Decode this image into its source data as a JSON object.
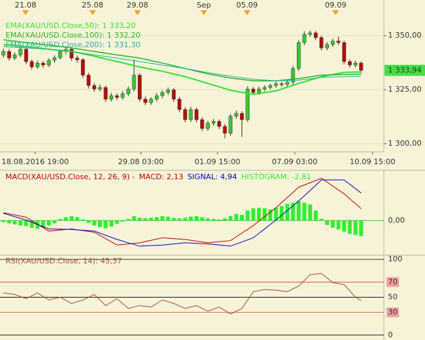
{
  "chart_data": [
    {
      "type": "candlestick",
      "xlim": [
        -0.6,
        67
      ],
      "ylim": [
        1296.2,
        1366.5
      ],
      "yticks": [
        {
          "value": 1300,
          "label": "1 300,00"
        },
        {
          "value": 1325,
          "label": "1 325,00"
        },
        {
          "value": 1350,
          "label": "1 350,00"
        }
      ],
      "grid": true,
      "xticks": [
        {
          "value": 5.6,
          "label": "18.08.2016 19:00"
        },
        {
          "value": 24.2,
          "label": "29.08 03:00"
        },
        {
          "value": 37.7,
          "label": "01.09 15:00"
        },
        {
          "value": 51.3,
          "label": "07.09 03:00"
        },
        {
          "value": 65.0,
          "label": "10.09 15:00"
        }
      ],
      "top_ticks": [
        {
          "value": 3.9,
          "label": "21.08"
        },
        {
          "value": 15.7,
          "label": "25.08"
        },
        {
          "value": 23.6,
          "label": "29.08"
        },
        {
          "value": 35.3,
          "label": "Sep"
        },
        {
          "value": 42.9,
          "label": "05.09"
        },
        {
          "value": 58.5,
          "label": "09.09"
        }
      ],
      "up_color": "#33cc33",
      "down_color": "#b01010",
      "open": [
        1341.0,
        1342.7,
        1339.6,
        1341.1,
        1343.7,
        1338.0,
        1335.5,
        1337.3,
        1336.4,
        1338.6,
        1339.8,
        1342.7,
        1343.7,
        1339.6,
        1338.9,
        1331.7,
        1326.9,
        1325.3,
        1326.0,
        1320.6,
        1322.2,
        1321.4,
        1323.1,
        1325.3,
        1331.7,
        1320.6,
        1319.0,
        1320.6,
        1322.2,
        1323.7,
        1324.9,
        1320.6,
        1315.8,
        1311.1,
        1315.8,
        1311.1,
        1307.0,
        1309.5,
        1310.3,
        1308.0,
        1304.8,
        1312.7,
        1314.0,
        1311.1,
        1325.3,
        1323.7,
        1325.3,
        1326.0,
        1326.9,
        1327.7,
        1327.5,
        1328.5,
        1334.8,
        1346.8,
        1350.6,
        1351.3,
        1349.1,
        1344.3,
        1345.9,
        1347.5,
        1346.8,
        1338.0,
        1336.4,
        1337.3
      ],
      "high": [
        1344.0,
        1343.9,
        1342.3,
        1345.0,
        1344.6,
        1339.0,
        1338.5,
        1338.2,
        1339.5,
        1340.9,
        1343.6,
        1345.2,
        1344.5,
        1340.8,
        1339.6,
        1332.8,
        1328.0,
        1327.4,
        1326.8,
        1323.5,
        1323.3,
        1324.4,
        1326.5,
        1339.0,
        1332.5,
        1321.9,
        1321.5,
        1323.4,
        1324.8,
        1326.0,
        1325.8,
        1321.7,
        1316.9,
        1317.0,
        1316.6,
        1312.3,
        1310.6,
        1311.4,
        1311.2,
        1309.1,
        1313.8,
        1315.3,
        1315.0,
        1326.6,
        1326.2,
        1326.4,
        1327.1,
        1327.9,
        1328.6,
        1328.7,
        1329.6,
        1336.0,
        1348.0,
        1352.0,
        1352.4,
        1352.1,
        1350.0,
        1347.0,
        1348.6,
        1349.5,
        1347.6,
        1339.0,
        1338.4,
        1338.1
      ],
      "low": [
        1339.8,
        1338.4,
        1338.7,
        1340.0,
        1336.8,
        1334.3,
        1334.6,
        1335.2,
        1335.5,
        1337.4,
        1338.9,
        1341.5,
        1338.3,
        1337.5,
        1330.4,
        1325.5,
        1324.0,
        1324.1,
        1319.3,
        1319.5,
        1320.2,
        1320.3,
        1322.0,
        1324.2,
        1319.4,
        1317.8,
        1318.0,
        1319.5,
        1321.0,
        1322.6,
        1319.3,
        1314.5,
        1309.8,
        1310.0,
        1309.9,
        1305.8,
        1306.0,
        1308.4,
        1306.8,
        1302.5,
        1303.6,
        1311.5,
        1303.2,
        1310.0,
        1322.5,
        1322.6,
        1324.2,
        1325.0,
        1325.8,
        1326.3,
        1326.4,
        1327.3,
        1333.6,
        1345.5,
        1349.4,
        1347.9,
        1343.1,
        1343.2,
        1344.8,
        1345.6,
        1336.8,
        1335.2,
        1335.3,
        1332.8
      ],
      "close": [
        1342.7,
        1339.6,
        1341.1,
        1343.7,
        1338.0,
        1335.5,
        1337.3,
        1336.4,
        1338.6,
        1339.8,
        1342.7,
        1343.7,
        1339.6,
        1338.9,
        1331.7,
        1326.9,
        1325.3,
        1326.0,
        1320.6,
        1322.2,
        1321.4,
        1323.1,
        1325.3,
        1331.7,
        1320.6,
        1319.0,
        1320.6,
        1322.2,
        1323.7,
        1324.9,
        1320.6,
        1315.8,
        1311.1,
        1315.8,
        1311.1,
        1307.0,
        1309.5,
        1310.3,
        1308.0,
        1304.8,
        1312.7,
        1314.0,
        1311.1,
        1325.3,
        1323.7,
        1325.3,
        1326.0,
        1326.9,
        1327.7,
        1327.5,
        1328.5,
        1334.8,
        1346.8,
        1350.6,
        1351.3,
        1349.1,
        1344.3,
        1345.9,
        1347.5,
        1346.8,
        1338.0,
        1336.4,
        1337.3,
        1333.94
      ],
      "last_price": {
        "value": 1333.94,
        "label": "1 333,94"
      },
      "last_price_color": "#44dd44",
      "series": [
        {
          "name": "EMA(XAU/USD.Close,50): 1 333,20",
          "color": "#33e033",
          "width": 2,
          "x": [
            0,
            4,
            8,
            12,
            16,
            20,
            24,
            28,
            32,
            36,
            40,
            44,
            48,
            52,
            56,
            60,
            63
          ],
          "values": [
            1345.9,
            1344.9,
            1343.7,
            1342.7,
            1340.5,
            1338.0,
            1335.5,
            1333.5,
            1331.0,
            1327.9,
            1324.7,
            1322.8,
            1324.4,
            1327.9,
            1331.0,
            1333.0,
            1333.2
          ]
        },
        {
          "name": "EMA(XAU/USD.Close,100): 1 332,20",
          "color": "#22b822",
          "width": 1.5,
          "x": [
            0,
            4,
            8,
            12,
            16,
            20,
            24,
            28,
            32,
            36,
            40,
            44,
            48,
            52,
            56,
            60,
            63
          ],
          "values": [
            1348.1,
            1346.8,
            1345.6,
            1344.3,
            1342.7,
            1341.1,
            1339.6,
            1337.3,
            1334.8,
            1332.3,
            1330.4,
            1329.1,
            1329.1,
            1330.1,
            1331.7,
            1332.0,
            1332.2
          ]
        },
        {
          "name": "EMA(XAU/USD.Close,200): 1 331,30",
          "color": "#20b0a0",
          "width": 1,
          "x": [
            0,
            4,
            8,
            12,
            16,
            20,
            24,
            28,
            32,
            36,
            40,
            44,
            48,
            52,
            56,
            60,
            63
          ],
          "values": [
            1344.9,
            1344.3,
            1343.7,
            1342.7,
            1341.1,
            1339.6,
            1338.0,
            1336.4,
            1334.8,
            1332.9,
            1331.3,
            1329.8,
            1329.1,
            1329.4,
            1330.7,
            1331.0,
            1331.3
          ]
        }
      ]
    },
    {
      "type": "macd",
      "title": "MACD(XAU/USD.Close, 12, 26, 9) -",
      "title_color": "#c00000",
      "xlim": [
        -0.6,
        67
      ],
      "ylim": [
        -6.1,
        8.9
      ],
      "yticks": [
        {
          "value": 0,
          "label": "0,00"
        }
      ],
      "zero_color": "#33cc33",
      "series": [
        {
          "name": "MACD: 2,13",
          "color": "#c00000",
          "x": [
            0,
            4,
            8,
            12,
            16,
            20,
            24,
            28,
            32,
            36,
            40,
            44,
            48,
            52,
            56,
            60,
            63
          ],
          "values": [
            1.4,
            0.6,
            -1.9,
            -1.5,
            -2.1,
            -4.4,
            -4.0,
            -3.1,
            -3.4,
            -4.0,
            -3.6,
            -0.9,
            2.3,
            6.0,
            7.6,
            4.8,
            2.13
          ]
        },
        {
          "name": "SIGNAL: 4,94",
          "color": "#0000c0",
          "x": [
            0,
            4,
            8,
            12,
            16,
            20,
            24,
            28,
            32,
            36,
            40,
            44,
            48,
            52,
            56,
            60,
            63
          ],
          "values": [
            1.3,
            0.1,
            -1.5,
            -1.6,
            -1.9,
            -3.4,
            -4.6,
            -4.4,
            -4.0,
            -4.2,
            -4.6,
            -3.1,
            0.1,
            3.5,
            7.3,
            7.3,
            4.94
          ]
        }
      ],
      "histogram": {
        "name": "HISTOGRAM: -2,81",
        "color": "#33ee33",
        "values": [
          -0.3,
          -0.5,
          -0.7,
          -0.9,
          -1.0,
          -1.3,
          -1.5,
          -1.2,
          -0.9,
          -0.5,
          0.3,
          0.6,
          0.8,
          0.6,
          0.2,
          -0.4,
          -0.9,
          -1.2,
          -1.4,
          -1.1,
          -0.6,
          -0.2,
          0.3,
          0.8,
          0.5,
          0.4,
          0.5,
          0.6,
          0.8,
          0.7,
          0.5,
          0.4,
          0.5,
          0.7,
          0.8,
          0.6,
          0.4,
          0.3,
          0.2,
          0.4,
          0.8,
          1.2,
          1.0,
          1.8,
          2.2,
          2.3,
          2.2,
          2.0,
          2.3,
          2.6,
          3.0,
          3.2,
          3.5,
          3.2,
          2.9,
          1.8,
          0.3,
          -0.8,
          -1.3,
          -1.6,
          -2.0,
          -2.4,
          -2.6,
          -2.81
        ]
      }
    },
    {
      "type": "line",
      "xlim": [
        -0.6,
        67
      ],
      "ylim": [
        -6.5,
        104.6
      ],
      "yticks": [
        100,
        70,
        50,
        30,
        0
      ],
      "ytick_colors": [
        "#000000",
        "#d04040",
        "#000000",
        "#d04040",
        "#000000"
      ],
      "series": [
        {
          "name": "RSI(XAU/USD.Close, 14): 45,37",
          "color": "#a0522d",
          "x": [
            0,
            2,
            4,
            6,
            8,
            10,
            12,
            14,
            16,
            18,
            20,
            22,
            24,
            26,
            28,
            30,
            32,
            34,
            36,
            38,
            40,
            42,
            44,
            46,
            48,
            50,
            52,
            54,
            56,
            58,
            60,
            62,
            63
          ],
          "values": [
            55.6,
            53.7,
            48.1,
            55.6,
            46.3,
            50.0,
            41.7,
            46.3,
            53.7,
            38.9,
            48.1,
            35.2,
            38.9,
            37.0,
            46.3,
            41.7,
            35.2,
            38.9,
            31.5,
            37.0,
            27.8,
            35.2,
            57.4,
            60.2,
            59.3,
            57.4,
            64.8,
            79.6,
            81.5,
            69.4,
            66.7,
            50.0,
            45.37
          ]
        }
      ]
    }
  ]
}
